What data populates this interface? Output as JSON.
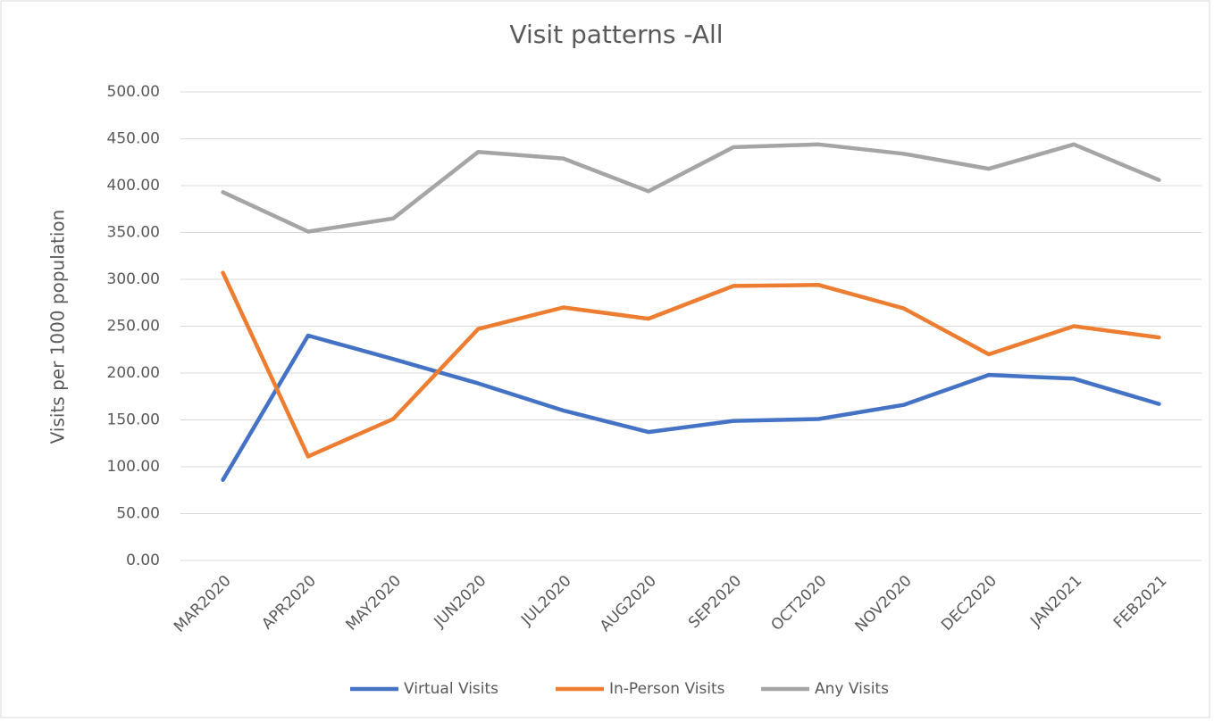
{
  "chart_data": {
    "type": "line",
    "title": "Visit patterns -All",
    "y_label": "Visits per 1000 population",
    "categories": [
      "MAR2020",
      "APR2020",
      "MAY2020",
      "JUN2020",
      "JUL2020",
      "AUG2020",
      "SEP2020",
      "OCT2020",
      "NOV2020",
      "DEC2020",
      "JAN2021",
      "FEB2021"
    ],
    "series": [
      {
        "name": "Virtual Visits",
        "color": "#4472c4",
        "values": [
          86,
          240,
          215,
          189,
          160,
          137,
          149,
          151,
          166,
          198,
          194,
          167
        ]
      },
      {
        "name": "In-Person Visits",
        "color": "#ed7d31",
        "values": [
          307,
          111,
          151,
          247,
          270,
          258,
          293,
          294,
          269,
          220,
          250,
          238
        ]
      },
      {
        "name": "Any Visits",
        "color": "#a5a5a5",
        "values": [
          393,
          351,
          365,
          436,
          429,
          394,
          441,
          444,
          434,
          418,
          444,
          406
        ]
      }
    ],
    "ylim": [
      0,
      500
    ],
    "yticks": [
      {
        "value": 0,
        "label": "0.00"
      },
      {
        "value": 50,
        "label": "50.00"
      },
      {
        "value": 100,
        "label": "100.00"
      },
      {
        "value": 150,
        "label": "150.00"
      },
      {
        "value": 200,
        "label": "200.00"
      },
      {
        "value": 250,
        "label": "250.00"
      },
      {
        "value": 300,
        "label": "300.00"
      },
      {
        "value": 350,
        "label": "350.00"
      },
      {
        "value": 400,
        "label": "400.00"
      },
      {
        "value": 450,
        "label": "450.00"
      },
      {
        "value": 500,
        "label": "500.00"
      }
    ],
    "grid": true,
    "legend": "bottom"
  }
}
